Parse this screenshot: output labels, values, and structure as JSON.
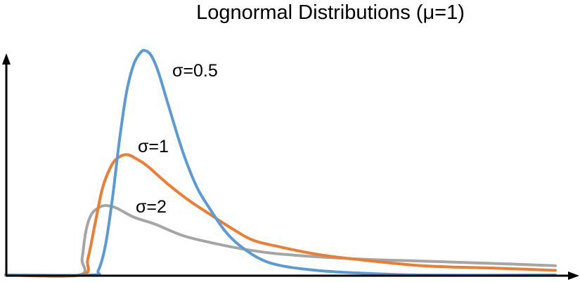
{
  "chart_data": {
    "type": "line",
    "title": "Lognormal Distributions (μ=1)",
    "xlabel": "",
    "ylabel": "",
    "xlim": [
      -1.53,
      10.5
    ],
    "ylim": [
      0,
      1
    ],
    "grid": false,
    "ticks": false,
    "legend": "inline labels next to curves",
    "series": [
      {
        "name": "σ=0.5",
        "color": "#5B9BD5",
        "points": [
          [
            -1.53,
            0
          ],
          [
            0.26,
            0
          ],
          [
            0.41,
            0.02
          ],
          [
            0.56,
            0.13
          ],
          [
            0.71,
            0.34
          ],
          [
            0.85,
            0.58
          ],
          [
            1.0,
            0.79
          ],
          [
            1.15,
            0.91
          ],
          [
            1.29,
            0.96
          ],
          [
            1.38,
            0.97
          ],
          [
            1.51,
            0.95
          ],
          [
            1.66,
            0.88
          ],
          [
            1.88,
            0.73
          ],
          [
            2.18,
            0.53
          ],
          [
            2.47,
            0.38
          ],
          [
            2.76,
            0.28
          ],
          [
            3.06,
            0.19
          ],
          [
            3.35,
            0.13
          ],
          [
            3.79,
            0.07
          ],
          [
            4.24,
            0.04
          ],
          [
            4.97,
            0.02
          ],
          [
            5.71,
            0.01
          ],
          [
            7.18,
            0.0
          ],
          [
            9.97,
            0.0
          ]
        ]
      },
      {
        "name": "σ=1",
        "color": "#ED7D31",
        "points": [
          [
            -1.53,
            0
          ],
          [
            0.04,
            0
          ],
          [
            0.19,
            0.07
          ],
          [
            0.34,
            0.22
          ],
          [
            0.49,
            0.37
          ],
          [
            0.63,
            0.45
          ],
          [
            0.78,
            0.5
          ],
          [
            1.0,
            0.52
          ],
          [
            1.22,
            0.5
          ],
          [
            1.44,
            0.47
          ],
          [
            1.88,
            0.39
          ],
          [
            2.32,
            0.32
          ],
          [
            2.76,
            0.26
          ],
          [
            3.21,
            0.2
          ],
          [
            3.65,
            0.15
          ],
          [
            4.24,
            0.12
          ],
          [
            4.97,
            0.09
          ],
          [
            5.71,
            0.07
          ],
          [
            7.18,
            0.04
          ],
          [
            8.65,
            0.03
          ],
          [
            9.97,
            0.02
          ]
        ]
      },
      {
        "name": "σ=2",
        "color": "#A5A5A5",
        "points": [
          [
            -1.53,
            0
          ],
          [
            0,
            0
          ],
          [
            0.07,
            0.07
          ],
          [
            0.15,
            0.19
          ],
          [
            0.26,
            0.26
          ],
          [
            0.41,
            0.29
          ],
          [
            0.56,
            0.3
          ],
          [
            0.78,
            0.29
          ],
          [
            1.15,
            0.25
          ],
          [
            1.59,
            0.22
          ],
          [
            2.18,
            0.17
          ],
          [
            2.76,
            0.14
          ],
          [
            3.5,
            0.11
          ],
          [
            4.24,
            0.09
          ],
          [
            5.71,
            0.07
          ],
          [
            7.18,
            0.06
          ],
          [
            8.65,
            0.05
          ],
          [
            9.97,
            0.04
          ]
        ]
      }
    ]
  }
}
